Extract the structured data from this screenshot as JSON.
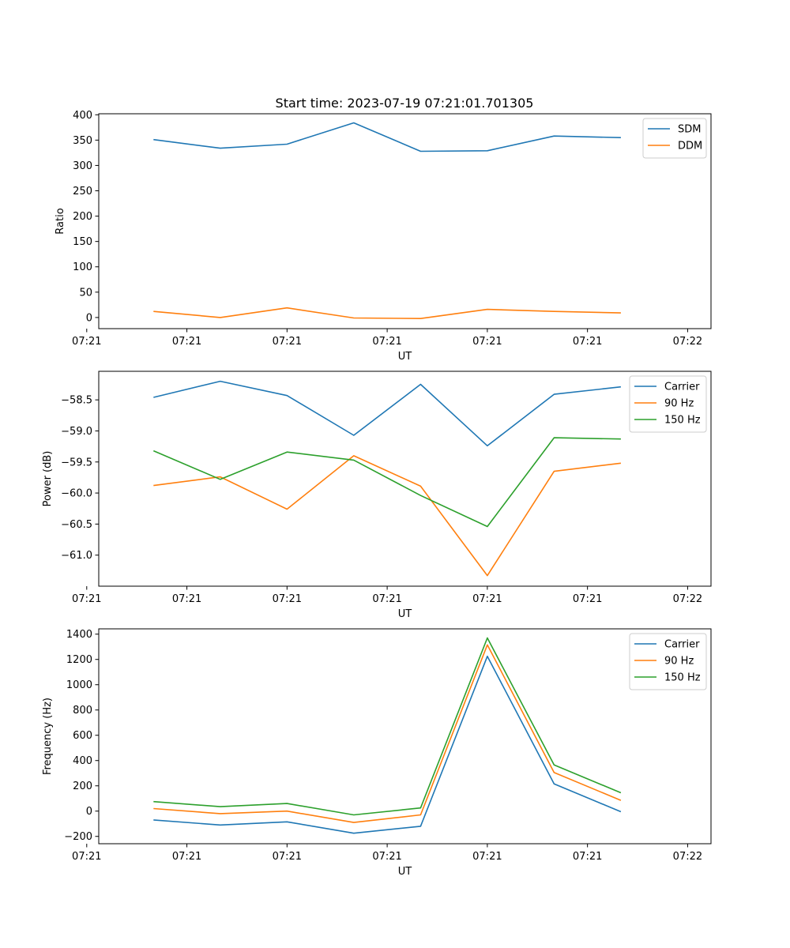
{
  "title": "Start time: 2023-07-19 07:21:01.701305",
  "colors": {
    "blue": "#1f77b4",
    "orange": "#ff7f0e",
    "green": "#2ca02c"
  },
  "chart_data": [
    {
      "type": "line",
      "xlabel": "UT",
      "ylabel": "Ratio",
      "x": [
        1,
        2,
        3,
        4,
        5,
        6,
        7,
        8
      ],
      "xlim": [
        0.18,
        9.35
      ],
      "xticks": [
        {
          "pos": 0,
          "label": "07:21"
        },
        {
          "pos": 1.5,
          "label": "07:21"
        },
        {
          "pos": 3,
          "label": "07:21"
        },
        {
          "pos": 4.5,
          "label": "07:21"
        },
        {
          "pos": 6,
          "label": "07:21"
        },
        {
          "pos": 7.5,
          "label": "07:21"
        },
        {
          "pos": 9,
          "label": "07:22"
        }
      ],
      "ylim": [
        -22,
        402
      ],
      "yticks": [
        0,
        50,
        100,
        150,
        200,
        250,
        300,
        350,
        400
      ],
      "ytick_labels": [
        "0",
        "50",
        "100",
        "150",
        "200",
        "250",
        "300",
        "350",
        "400"
      ],
      "legend_position": "upper-right",
      "series": [
        {
          "name": "SDM",
          "color": "blue",
          "values": [
            351,
            334,
            342,
            384,
            328,
            329,
            358,
            355
          ]
        },
        {
          "name": "DDM",
          "color": "orange",
          "values": [
            12,
            0,
            19,
            -1,
            -2,
            16,
            12,
            9
          ]
        }
      ]
    },
    {
      "type": "line",
      "xlabel": "UT",
      "ylabel": "Power (dB)",
      "x": [
        1,
        2,
        3,
        4,
        5,
        6,
        7,
        8
      ],
      "xlim": [
        0.18,
        9.35
      ],
      "xticks": [
        {
          "pos": 0,
          "label": "07:21"
        },
        {
          "pos": 1.5,
          "label": "07:21"
        },
        {
          "pos": 3,
          "label": "07:21"
        },
        {
          "pos": 4.5,
          "label": "07:21"
        },
        {
          "pos": 6,
          "label": "07:21"
        },
        {
          "pos": 7.5,
          "label": "07:21"
        },
        {
          "pos": 9,
          "label": "07:22"
        }
      ],
      "ylim": [
        -61.5,
        -58.04
      ],
      "yticks": [
        -58.5,
        -59.0,
        -59.5,
        -60.0,
        -60.5,
        -61.0
      ],
      "ytick_labels": [
        "−58.5",
        "−59.0",
        "−59.5",
        "−60.0",
        "−60.5",
        "−61.0"
      ],
      "legend_position": "upper-right",
      "series": [
        {
          "name": "Carrier",
          "color": "blue",
          "values": [
            -58.46,
            -58.2,
            -58.43,
            -59.07,
            -58.25,
            -59.24,
            -58.41,
            -58.29
          ]
        },
        {
          "name": "90 Hz",
          "color": "orange",
          "values": [
            -59.88,
            -59.74,
            -60.26,
            -59.4,
            -59.89,
            -61.33,
            -59.65,
            -59.52
          ]
        },
        {
          "name": "150 Hz",
          "color": "green",
          "values": [
            -59.32,
            -59.78,
            -59.34,
            -59.47,
            -60.04,
            -60.54,
            -59.11,
            -59.13
          ]
        }
      ]
    },
    {
      "type": "line",
      "xlabel": "UT",
      "ylabel": "Frequency (Hz)",
      "x": [
        1,
        2,
        3,
        4,
        5,
        6,
        7,
        8
      ],
      "xlim": [
        0.18,
        9.35
      ],
      "xticks": [
        {
          "pos": 0,
          "label": "07:21"
        },
        {
          "pos": 1.5,
          "label": "07:21"
        },
        {
          "pos": 3,
          "label": "07:21"
        },
        {
          "pos": 4.5,
          "label": "07:21"
        },
        {
          "pos": 6,
          "label": "07:21"
        },
        {
          "pos": 7.5,
          "label": "07:21"
        },
        {
          "pos": 9,
          "label": "07:22"
        }
      ],
      "ylim": [
        -258,
        1442
      ],
      "yticks": [
        -200,
        0,
        200,
        400,
        600,
        800,
        1000,
        1200,
        1400
      ],
      "ytick_labels": [
        "−200",
        "0",
        "200",
        "400",
        "600",
        "800",
        "1000",
        "1200",
        "1400"
      ],
      "legend_position": "upper-right",
      "series": [
        {
          "name": "Carrier",
          "color": "blue",
          "values": [
            -70,
            -110,
            -85,
            -175,
            -120,
            1225,
            215,
            -5
          ]
        },
        {
          "name": "90 Hz",
          "color": "orange",
          "values": [
            20,
            -20,
            0,
            -90,
            -30,
            1315,
            305,
            85
          ]
        },
        {
          "name": "150 Hz",
          "color": "green",
          "values": [
            75,
            35,
            60,
            -30,
            25,
            1370,
            365,
            145
          ]
        }
      ]
    }
  ]
}
